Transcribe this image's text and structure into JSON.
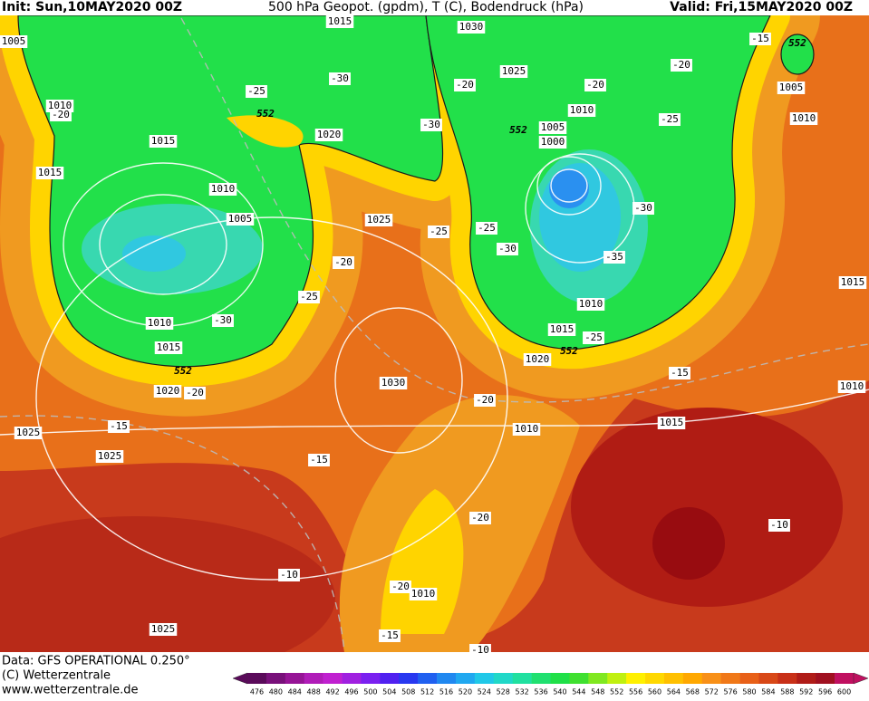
{
  "header": {
    "init": "Init: Sun,10MAY2020 00Z",
    "title": "500 hPa Geopot. (gpdm), T (C), Bodendruck (hPa)",
    "valid": "Valid: Fri,15MAY2020 00Z"
  },
  "footer": {
    "data": "Data: GFS OPERATIONAL 0.250°",
    "copyright": "(C) Wetterzentrale",
    "url": "www.wetterzentrale.de"
  },
  "map": {
    "isobar_labels": [
      "1005",
      "1015",
      "1030",
      "1025",
      "1010",
      "1015",
      "1020",
      "1010",
      "1005",
      "1000",
      "1015",
      "1010",
      "1005",
      "1025",
      "1005",
      "1010",
      "1010",
      "1015",
      "1010",
      "1015",
      "1020",
      "1030",
      "1020",
      "1015",
      "1010",
      "1010",
      "1015",
      "1025",
      "1025",
      "1010",
      "1025"
    ],
    "temperature_labels": [
      "-15",
      "-20",
      "-25",
      "-30",
      "-20",
      "-20",
      "-25",
      "-20",
      "-30",
      "-30",
      "-25",
      "-25",
      "-30",
      "-35",
      "-20",
      "-25",
      "-30",
      "-25",
      "-15",
      "-20",
      "-20",
      "-15",
      "-15",
      "-20",
      "-10",
      "-10",
      "-20",
      "-15",
      "-10"
    ],
    "geopotential_labels": [
      "552",
      "552",
      "552",
      "552",
      "552"
    ]
  },
  "colorbar": {
    "ticks": [
      476,
      480,
      484,
      488,
      492,
      496,
      500,
      504,
      508,
      512,
      516,
      520,
      524,
      528,
      532,
      536,
      540,
      544,
      548,
      552,
      556,
      560,
      564,
      568,
      572,
      576,
      580,
      584,
      588,
      592,
      596,
      600
    ],
    "colors": [
      "#5a0a5a",
      "#78107a",
      "#961496",
      "#b01cb8",
      "#c020d0",
      "#a020e0",
      "#7a20f0",
      "#5020f0",
      "#2838f0",
      "#2060f0",
      "#2088f0",
      "#20a8f0",
      "#20c8e8",
      "#20d8c8",
      "#20e0a0",
      "#20e070",
      "#20e048",
      "#40e030",
      "#80e820",
      "#c0f010",
      "#fff000",
      "#ffd800",
      "#ffc000",
      "#ffa800",
      "#f89018",
      "#f07818",
      "#e86018",
      "#d84818",
      "#c83018",
      "#b01c18",
      "#a01020",
      "#c01060"
    ]
  }
}
